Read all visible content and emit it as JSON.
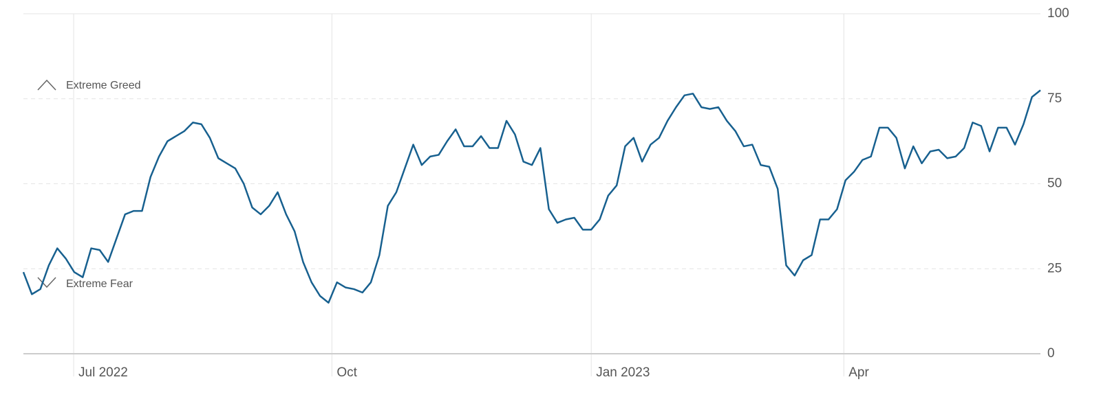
{
  "chart_data": {
    "type": "line",
    "values": [
      24,
      17.5,
      19,
      26,
      31,
      28,
      24,
      22.5,
      31,
      30.5,
      27,
      34,
      41,
      42,
      42,
      52,
      58,
      62.5,
      64,
      65.5,
      68,
      67.5,
      63.5,
      57.5,
      56,
      54.5,
      50,
      43,
      41,
      43.5,
      47.5,
      41,
      36,
      27,
      21,
      17,
      15,
      21,
      19.5,
      19,
      18,
      21,
      29,
      43.5,
      47.5,
      54.5,
      61.5,
      55.5,
      58,
      58.5,
      62.5,
      66,
      61,
      61,
      64,
      60.5,
      60.5,
      68.5,
      64.5,
      56.5,
      55.5,
      60.5,
      42.5,
      38.5,
      39.5,
      40,
      36.5,
      36.5,
      39.5,
      46.5,
      49.5,
      61,
      63.5,
      56.5,
      61.5,
      63.5,
      68.5,
      72.5,
      76,
      76.5,
      72.5,
      72,
      72.5,
      68.5,
      65.5,
      61,
      61.5,
      55.5,
      55,
      48.5,
      26,
      23,
      27.5,
      29,
      39.5,
      39.5,
      42.5,
      51,
      53.5,
      57,
      58,
      66.5,
      66.5,
      63.5,
      54.5,
      61,
      56,
      59.5,
      60,
      57.5,
      58,
      60.5,
      68,
      67,
      59.5,
      66.5,
      66.5,
      61.5,
      67.5,
      75.5,
      77.5
    ],
    "color": "#17608f",
    "xlim": [
      0,
      120
    ],
    "xticks": [
      {
        "value": 5.93,
        "label": "Jul 2022"
      },
      {
        "value": 36.4,
        "label": "Oct"
      },
      {
        "value": 67,
        "label": "Jan 2023"
      },
      {
        "value": 96.8,
        "label": "Apr"
      }
    ],
    "ylim": [
      0,
      100
    ],
    "yticks": [
      0,
      25,
      50,
      75,
      100
    ],
    "grid": true,
    "annotations": [
      "Extreme Greed",
      "Extreme Fear"
    ]
  }
}
